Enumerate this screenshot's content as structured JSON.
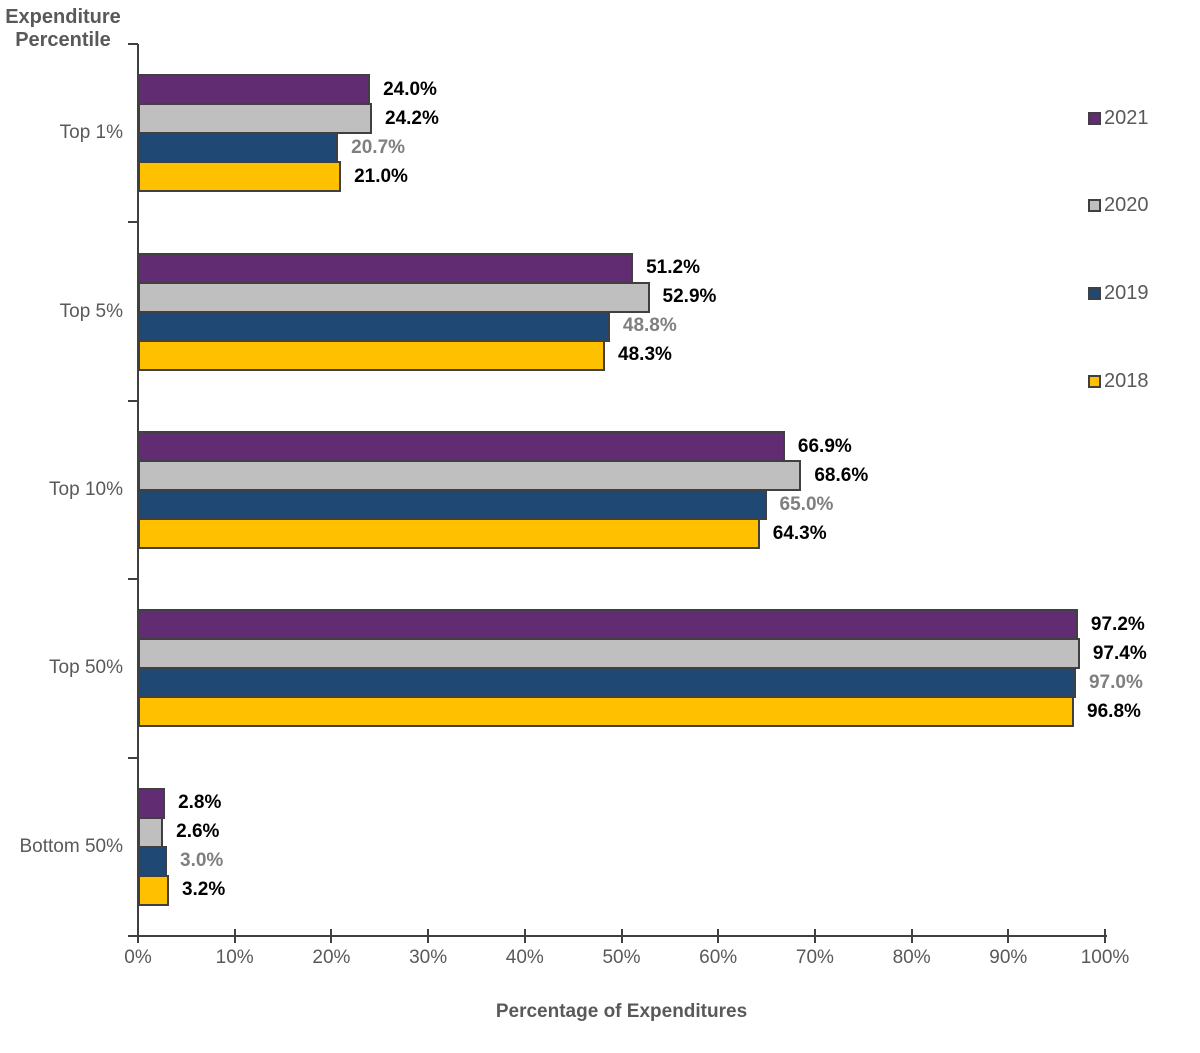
{
  "chart_data": {
    "type": "bar",
    "orientation": "horizontal",
    "xlabel": "Percentage of Expenditures",
    "ylabel": "Expenditure Percentile",
    "ylabel_lines": [
      "Expenditure",
      "Percentile"
    ],
    "categories": [
      "Top 1%",
      "Top 5%",
      "Top 10%",
      "Top 50%",
      "Bottom 50%"
    ],
    "series": [
      {
        "name": "2021",
        "color": "#622C72",
        "label_color": "#000000",
        "values": [
          24.0,
          51.2,
          66.9,
          97.2,
          2.8
        ],
        "labels": [
          "24.0%",
          "51.2%",
          "66.9%",
          "97.2%",
          "2.8%"
        ]
      },
      {
        "name": "2020",
        "color": "#BFBFBF",
        "label_color": "#000000",
        "values": [
          24.2,
          52.9,
          68.6,
          97.4,
          2.6
        ],
        "labels": [
          "24.2%",
          "52.9%",
          "68.6%",
          "97.4%",
          "2.6%"
        ]
      },
      {
        "name": "2019",
        "color": "#1F4874",
        "label_color": "#7F7F7F",
        "values": [
          20.7,
          48.8,
          65.0,
          97.0,
          3.0
        ],
        "labels": [
          "20.7%",
          "48.8%",
          "65.0%",
          "97.0%",
          "3.0%"
        ]
      },
      {
        "name": "2018",
        "color": "#FFC000",
        "label_color": "#000000",
        "values": [
          21.0,
          48.3,
          64.3,
          96.8,
          3.2
        ],
        "labels": [
          "21.0%",
          "48.3%",
          "64.3%",
          "96.8%",
          "3.2%"
        ]
      }
    ],
    "x_ticks": [
      "0%",
      "10%",
      "20%",
      "30%",
      "40%",
      "50%",
      "60%",
      "70%",
      "80%",
      "90%",
      "100%"
    ],
    "x_tick_values": [
      0,
      10,
      20,
      30,
      40,
      50,
      60,
      70,
      80,
      90,
      100
    ],
    "xlim": [
      0,
      100
    ],
    "grid": false,
    "legend_position": "right",
    "colors": {
      "axis": "#404040",
      "text": "#595959",
      "value_label_default": "#000000",
      "value_label_2019": "#7F7F7F"
    }
  }
}
